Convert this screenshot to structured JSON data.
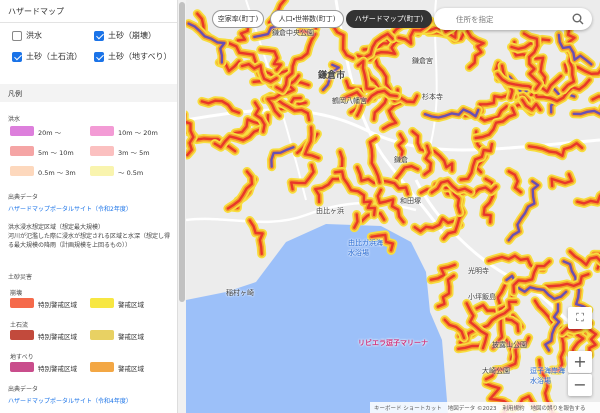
{
  "top_bar": {
    "tabs": [
      "空家率(町丁)",
      "人口・世帯数(町丁)",
      "ハザードマップ(町丁)"
    ],
    "search_placeholder": "住所を指定"
  },
  "sidebar": {
    "title": "ハザードマップ",
    "layers": [
      {
        "label": "洪水",
        "checked": false
      },
      {
        "label": "土砂（崩壊）",
        "checked": true
      },
      {
        "label": "土砂（土石流）",
        "checked": true
      },
      {
        "label": "土砂（地すべり）",
        "checked": true
      }
    ],
    "legend_title": "凡例",
    "flood": {
      "title": "洪水",
      "items": [
        "20m ～",
        "10m ～ 20m",
        "5m ～ 10m",
        "3m ～ 5m",
        "0.5m ～ 3m",
        "～ 0.5m"
      ],
      "source_title": "出典データ",
      "source_link": "ハザードマップポータルサイト（令和2年度）",
      "dataset_title": "洪水浸水想定区域（想定最大規模）",
      "dataset_note": "河川が氾濫した際に浸水が想定される区域と水深（想定し得る最大規模の降雨（計画規模を上回るもの））"
    },
    "sediment": {
      "title": "土砂災害",
      "groups": [
        {
          "name": "崩壊",
          "special": "特別警戒区域",
          "warning": "警戒区域"
        },
        {
          "name": "土石流",
          "special": "特別警戒区域",
          "warning": "警戒区域"
        },
        {
          "name": "地すべり",
          "special": "特別警戒区域",
          "warning": "警戒区域"
        }
      ],
      "source_title": "出典データ",
      "source_link": "ハザードマップポータルサイト（令和4年度）"
    }
  },
  "map": {
    "labels": [
      "鎌倉市",
      "鎌倉中央公園",
      "鶴岡八幡宮",
      "鎌倉宮",
      "杉本寺",
      "鎌倉",
      "和田塚",
      "由比ヶ浜",
      "由比ガ浜海水浴場",
      "稲村ヶ崎",
      "光明寺",
      "小坪飯島",
      "リビエラ逗子マリーナ",
      "披露山公園",
      "大崎公園",
      "逗子海岸海水浴場"
    ],
    "footer": [
      "キーボード ショートカット",
      "地図データ ©2023",
      "利用規約",
      "地図の誤りを報告する"
    ]
  }
}
